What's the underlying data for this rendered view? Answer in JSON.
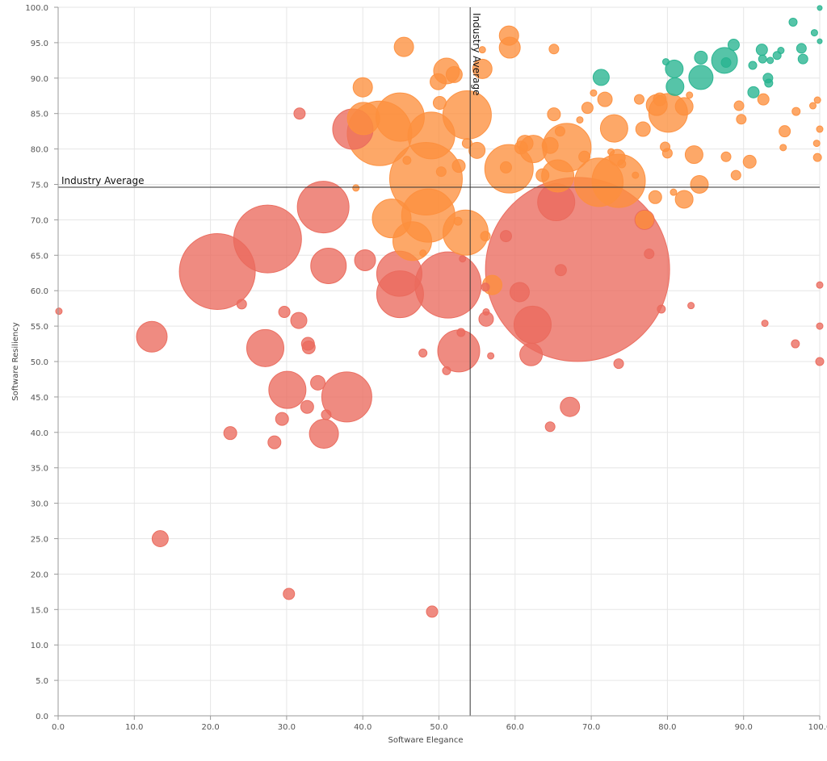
{
  "chart_data": {
    "type": "scatter",
    "subtype": "bubble",
    "title": "",
    "xlabel": "Software Elegance",
    "ylabel": "Software Resiliency",
    "xlim": [
      0,
      100
    ],
    "ylim": [
      0,
      100
    ],
    "x_ticks": [
      "0.0",
      "10.0",
      "20.0",
      "30.0",
      "40.0",
      "50.0",
      "60.0",
      "70.0",
      "80.0",
      "90.0",
      "100.0"
    ],
    "y_ticks": [
      "0.0",
      "5.0",
      "10.0",
      "15.0",
      "20.0",
      "25.0",
      "30.0",
      "35.0",
      "40.0",
      "45.0",
      "50.0",
      "55.0",
      "60.0",
      "65.0",
      "70.0",
      "75.0",
      "80.0",
      "85.0",
      "90.0",
      "95.0",
      "100.0"
    ],
    "grid": true,
    "reference_lines": [
      {
        "axis": "x",
        "value": 54.1,
        "label": "Industry Average"
      },
      {
        "axis": "y",
        "value": 74.6,
        "label": "Industry Average"
      }
    ],
    "colors": {
      "red": "#ea6a5d",
      "orange": "#fd8f3e",
      "green": "#27b48f"
    },
    "series": [
      {
        "color": "red",
        "points": [
          [
            68.2,
            63.0,
            114
          ],
          [
            20.9,
            62.7,
            47
          ],
          [
            27.5,
            67.3,
            42
          ],
          [
            34.8,
            71.8,
            32
          ],
          [
            51.2,
            60.8,
            41
          ],
          [
            44.8,
            62.4,
            28
          ],
          [
            44.9,
            59.5,
            29
          ],
          [
            52.6,
            51.5,
            26
          ],
          [
            35.5,
            63.5,
            22
          ],
          [
            38.7,
            82.8,
            25
          ],
          [
            62.3,
            55.2,
            23
          ],
          [
            27.2,
            51.9,
            23
          ],
          [
            30.1,
            46.0,
            23
          ],
          [
            37.9,
            45.0,
            31
          ],
          [
            12.3,
            53.5,
            19
          ],
          [
            34.9,
            39.8,
            18
          ],
          [
            65.4,
            72.5,
            23
          ],
          [
            40.3,
            64.3,
            13
          ],
          [
            60.6,
            59.8,
            12
          ],
          [
            62.1,
            51.0,
            14
          ],
          [
            67.2,
            43.6,
            12
          ],
          [
            77.0,
            70.0,
            12
          ],
          [
            13.4,
            25.0,
            10
          ],
          [
            31.6,
            55.8,
            10
          ],
          [
            34.1,
            47.0,
            9
          ],
          [
            32.7,
            43.6,
            8
          ],
          [
            29.4,
            41.9,
            8
          ],
          [
            28.4,
            38.6,
            8
          ],
          [
            22.6,
            39.9,
            8
          ],
          [
            32.9,
            52.0,
            8
          ],
          [
            32.8,
            52.5,
            8
          ],
          [
            30.3,
            17.2,
            7
          ],
          [
            49.1,
            14.7,
            7
          ],
          [
            56.2,
            56.0,
            9
          ],
          [
            66.0,
            62.9,
            7
          ],
          [
            29.7,
            57.0,
            7
          ],
          [
            24.1,
            58.1,
            6
          ],
          [
            31.7,
            85.0,
            7
          ],
          [
            35.2,
            42.5,
            6
          ],
          [
            47.9,
            51.2,
            5
          ],
          [
            52.9,
            54.1,
            5
          ],
          [
            51.0,
            48.7,
            5
          ],
          [
            56.8,
            50.8,
            4
          ],
          [
            64.6,
            40.8,
            6
          ],
          [
            73.6,
            49.7,
            6
          ],
          [
            77.6,
            65.2,
            6
          ],
          [
            79.2,
            57.4,
            5
          ],
          [
            83.1,
            57.9,
            4
          ],
          [
            92.8,
            55.4,
            4
          ],
          [
            96.8,
            52.5,
            5
          ],
          [
            100.0,
            50.0,
            5
          ],
          [
            100.0,
            55.0,
            4
          ],
          [
            100.0,
            60.8,
            4
          ],
          [
            0.1,
            57.1,
            4
          ],
          [
            53.1,
            64.5,
            4
          ],
          [
            56.1,
            60.5,
            5
          ],
          [
            58.8,
            67.7,
            7
          ],
          [
            56.2,
            57.0,
            4
          ]
        ]
      },
      {
        "color": "orange",
        "points": [
          [
            48.3,
            75.8,
            45
          ],
          [
            42.2,
            82.2,
            40
          ],
          [
            48.6,
            70.6,
            33
          ],
          [
            71.0,
            75.3,
            30
          ],
          [
            53.7,
            84.8,
            30
          ],
          [
            66.8,
            80.2,
            30
          ],
          [
            44.9,
            84.5,
            30
          ],
          [
            49.0,
            81.9,
            29
          ],
          [
            53.5,
            68.2,
            28
          ],
          [
            59.2,
            77.2,
            30
          ],
          [
            46.5,
            67.0,
            24
          ],
          [
            43.8,
            70.2,
            24
          ],
          [
            73.6,
            75.5,
            33
          ],
          [
            80.1,
            85.1,
            24
          ],
          [
            40.1,
            84.3,
            20
          ],
          [
            65.6,
            76.2,
            20
          ],
          [
            73.0,
            82.9,
            17
          ],
          [
            78.6,
            86.2,
            13
          ],
          [
            51.0,
            91.0,
            16
          ],
          [
            59.2,
            96.0,
            12
          ],
          [
            59.3,
            94.3,
            13
          ],
          [
            45.4,
            94.4,
            12
          ],
          [
            40.0,
            88.7,
            12
          ],
          [
            55.7,
            91.3,
            12
          ],
          [
            62.4,
            80.0,
            17
          ],
          [
            82.2,
            86.0,
            11
          ],
          [
            82.2,
            72.9,
            11
          ],
          [
            83.5,
            79.2,
            11
          ],
          [
            84.2,
            75.0,
            11
          ],
          [
            73.4,
            78.8,
            10
          ],
          [
            77.0,
            70.0,
            11
          ],
          [
            49.9,
            89.5,
            10
          ],
          [
            52.0,
            90.5,
            10
          ],
          [
            55.0,
            79.8,
            10
          ],
          [
            57.0,
            60.8,
            12
          ],
          [
            71.8,
            87.0,
            9
          ],
          [
            76.8,
            82.8,
            9
          ],
          [
            79.0,
            87.0,
            8
          ],
          [
            65.1,
            84.9,
            8
          ],
          [
            65.9,
            82.5,
            6
          ],
          [
            69.1,
            78.9,
            7
          ],
          [
            69.5,
            85.8,
            7
          ],
          [
            76.3,
            87.0,
            6
          ],
          [
            79.7,
            80.3,
            6
          ],
          [
            80.0,
            79.4,
            6
          ],
          [
            78.4,
            73.2,
            8
          ],
          [
            87.7,
            78.9,
            6
          ],
          [
            89.0,
            76.3,
            6
          ],
          [
            89.4,
            86.1,
            6
          ],
          [
            89.7,
            84.2,
            6
          ],
          [
            90.8,
            78.2,
            8
          ],
          [
            92.6,
            87.0,
            7
          ],
          [
            95.2,
            80.2,
            4
          ],
          [
            95.4,
            82.5,
            7
          ],
          [
            96.9,
            85.3,
            5
          ],
          [
            99.1,
            86.1,
            4
          ],
          [
            99.7,
            86.9,
            4
          ],
          [
            99.7,
            78.8,
            5
          ],
          [
            100.0,
            82.8,
            4
          ],
          [
            99.6,
            80.8,
            4
          ],
          [
            65.1,
            94.1,
            6
          ],
          [
            52.6,
            77.6,
            8
          ],
          [
            53.7,
            80.8,
            6
          ],
          [
            50.3,
            76.8,
            6
          ],
          [
            50.1,
            86.5,
            8
          ],
          [
            45.8,
            78.4,
            5
          ],
          [
            58.8,
            77.4,
            7
          ],
          [
            47.9,
            65.3,
            4
          ],
          [
            52.5,
            69.8,
            5
          ],
          [
            56.1,
            67.7,
            6
          ],
          [
            63.6,
            76.3,
            8
          ],
          [
            68.5,
            84.1,
            4
          ],
          [
            70.3,
            87.9,
            4
          ],
          [
            72.6,
            79.6,
            4
          ],
          [
            74.0,
            77.9,
            5
          ],
          [
            75.8,
            76.3,
            4
          ],
          [
            80.8,
            73.9,
            4
          ],
          [
            82.9,
            87.6,
            4
          ],
          [
            55.7,
            94.0,
            4
          ],
          [
            60.8,
            80.2,
            8
          ],
          [
            61.3,
            80.8,
            10
          ],
          [
            64.6,
            80.5,
            10
          ],
          [
            39.1,
            74.5,
            4
          ]
        ]
      },
      {
        "color": "green",
        "points": [
          [
            87.5,
            92.5,
            16
          ],
          [
            84.4,
            90.1,
            15
          ],
          [
            80.9,
            91.3,
            11
          ],
          [
            81.0,
            88.8,
            11
          ],
          [
            71.3,
            90.1,
            10
          ],
          [
            84.4,
            92.9,
            8
          ],
          [
            88.7,
            94.7,
            7
          ],
          [
            92.4,
            94.0,
            7
          ],
          [
            93.2,
            90.0,
            6
          ],
          [
            93.3,
            89.3,
            5
          ],
          [
            91.3,
            88.0,
            7
          ],
          [
            91.2,
            91.8,
            5
          ],
          [
            92.5,
            92.7,
            5
          ],
          [
            93.5,
            92.5,
            4
          ],
          [
            94.4,
            93.2,
            5
          ],
          [
            94.9,
            93.9,
            4
          ],
          [
            97.6,
            94.2,
            6
          ],
          [
            97.8,
            92.7,
            6
          ],
          [
            96.5,
            97.9,
            5
          ],
          [
            99.3,
            96.4,
            4
          ],
          [
            100.0,
            95.2,
            3
          ],
          [
            100.0,
            99.9,
            3
          ],
          [
            79.8,
            92.3,
            4
          ],
          [
            87.7,
            92.2,
            6
          ]
        ]
      }
    ]
  }
}
